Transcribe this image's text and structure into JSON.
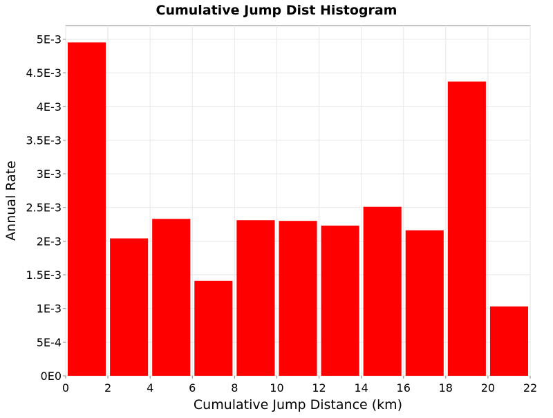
{
  "chart_data": {
    "type": "bar",
    "title": "Cumulative Jump Dist Histogram",
    "xlabel": "Cumulative Jump Distance (km)",
    "ylabel": "Annual Rate",
    "xlim": [
      0,
      22
    ],
    "ylim": [
      0,
      0.0052
    ],
    "x_ticks": [
      {
        "value": 0,
        "label": "0"
      },
      {
        "value": 2,
        "label": "2"
      },
      {
        "value": 4,
        "label": "4"
      },
      {
        "value": 6,
        "label": "6"
      },
      {
        "value": 8,
        "label": "8"
      },
      {
        "value": 10,
        "label": "10"
      },
      {
        "value": 12,
        "label": "12"
      },
      {
        "value": 14,
        "label": "14"
      },
      {
        "value": 16,
        "label": "16"
      },
      {
        "value": 18,
        "label": "18"
      },
      {
        "value": 20,
        "label": "20"
      },
      {
        "value": 22,
        "label": "22"
      }
    ],
    "y_ticks": [
      {
        "value": 0,
        "label": "0E0"
      },
      {
        "value": 0.0005,
        "label": "5E-4"
      },
      {
        "value": 0.001,
        "label": "1E-3"
      },
      {
        "value": 0.0015,
        "label": "1.5E-3"
      },
      {
        "value": 0.002,
        "label": "2E-3"
      },
      {
        "value": 0.0025,
        "label": "2.5E-3"
      },
      {
        "value": 0.003,
        "label": "3E-3"
      },
      {
        "value": 0.0035,
        "label": "3.5E-3"
      },
      {
        "value": 0.004,
        "label": "4E-3"
      },
      {
        "value": 0.0045,
        "label": "4.5E-3"
      },
      {
        "value": 0.005,
        "label": "5E-3"
      }
    ],
    "bins": [
      {
        "x_start": 0,
        "x_end": 2,
        "value": 0.00495
      },
      {
        "x_start": 2,
        "x_end": 4,
        "value": 0.00204
      },
      {
        "x_start": 4,
        "x_end": 6,
        "value": 0.00233
      },
      {
        "x_start": 6,
        "x_end": 8,
        "value": 0.00141
      },
      {
        "x_start": 8,
        "x_end": 10,
        "value": 0.00231
      },
      {
        "x_start": 10,
        "x_end": 12,
        "value": 0.0023
      },
      {
        "x_start": 12,
        "x_end": 14,
        "value": 0.00223
      },
      {
        "x_start": 14,
        "x_end": 16,
        "value": 0.00251
      },
      {
        "x_start": 16,
        "x_end": 18,
        "value": 0.00216
      },
      {
        "x_start": 18,
        "x_end": 20,
        "value": 0.00437
      },
      {
        "x_start": 20,
        "x_end": 22,
        "value": 0.00103
      }
    ],
    "bar_color": "#ff0000",
    "grid": true
  }
}
